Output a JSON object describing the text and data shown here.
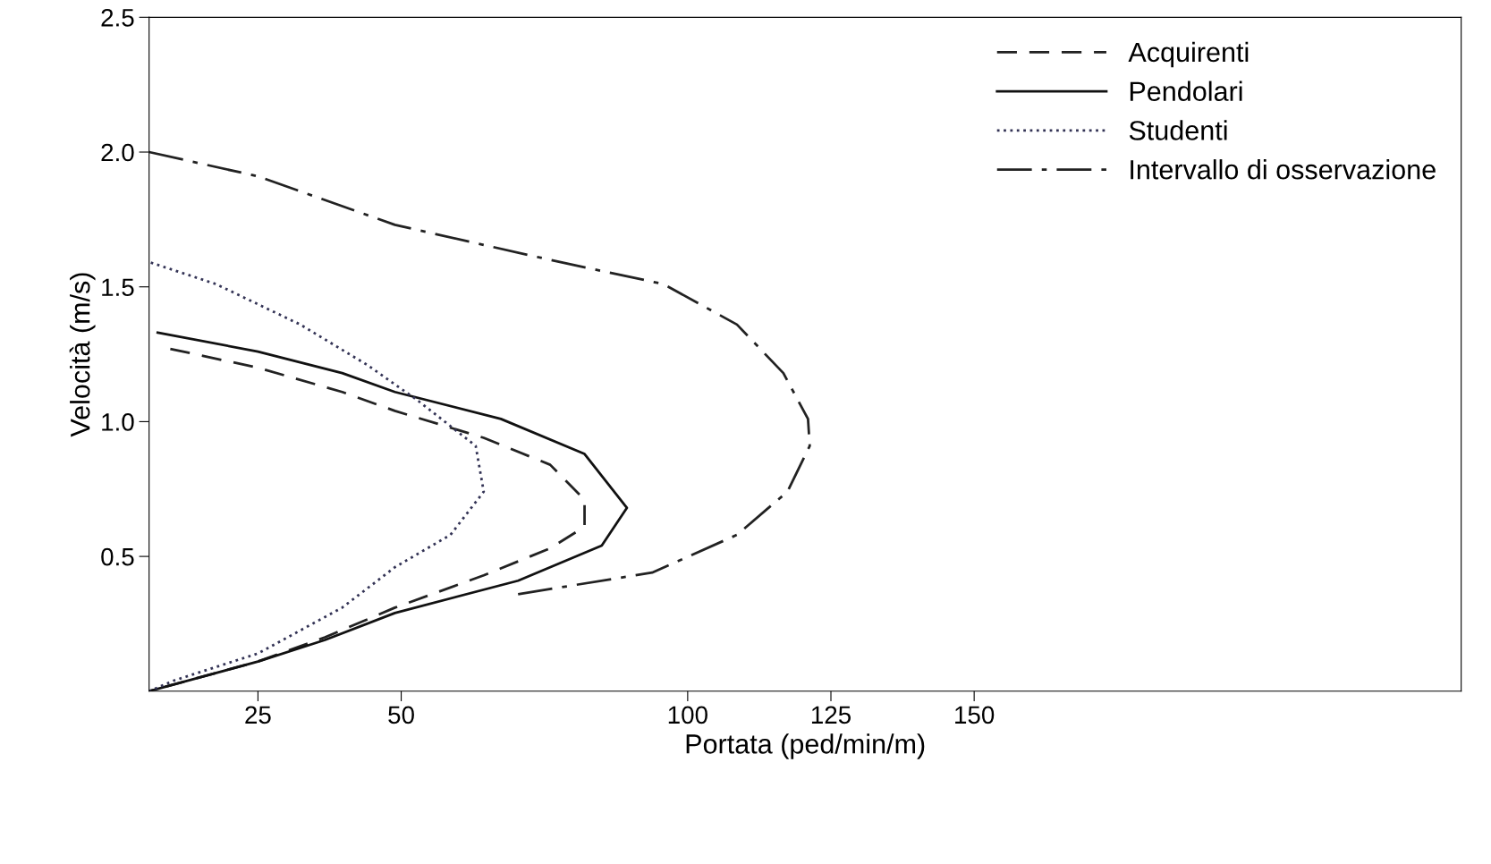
{
  "chart_data": {
    "type": "line",
    "xlabel": "Portata (ped/min/m)",
    "ylabel": "Velocità (m/s)",
    "xlim": [
      6,
      235
    ],
    "ylim": [
      0,
      2.5
    ],
    "xticks": [
      25,
      50,
      100,
      125,
      150
    ],
    "yticks": [
      0.5,
      {
        "value": 1.0,
        "label": "1.0"
      },
      1.5,
      {
        "value": 2.0,
        "label": "2.0"
      },
      2.5
    ],
    "grid": false,
    "legend": "top right",
    "series": [
      {
        "name": "Acquirenti",
        "color": "#222222",
        "line_style": "dashed",
        "x": [
          9.7,
          25,
          39.7,
          48.9,
          64.4,
          76,
          82,
          82,
          76,
          64.4,
          48.9,
          36.7,
          25,
          6
        ],
        "values": [
          1.27,
          1.2,
          1.11,
          1.04,
          0.94,
          0.84,
          0.71,
          0.61,
          0.53,
          0.43,
          0.31,
          0.2,
          0.11,
          0.0
        ]
      },
      {
        "name": "Pendolari",
        "color": "#111111",
        "line_style": "solid",
        "x": [
          7.5,
          25,
          39.7,
          48.9,
          67.4,
          82,
          89.4,
          85,
          70.4,
          48.9,
          36.7,
          25,
          6
        ],
        "values": [
          1.33,
          1.26,
          1.18,
          1.11,
          1.01,
          0.88,
          0.68,
          0.54,
          0.41,
          0.29,
          0.19,
          0.11,
          0.0
        ]
      },
      {
        "name": "Studenti",
        "color": "#333355",
        "line_style": "dotted",
        "x": [
          6.3,
          17.7,
          32.4,
          44.1,
          52.8,
          63,
          64.4,
          58.6,
          48.9,
          39.7,
          25,
          10.4,
          6
        ],
        "values": [
          1.59,
          1.51,
          1.36,
          1.21,
          1.08,
          0.91,
          0.74,
          0.58,
          0.46,
          0.31,
          0.14,
          0.04,
          0.0
        ]
      },
      {
        "name": "Intervallo di osservazione",
        "color": "#222222",
        "line_style": "dashdot",
        "x": [
          6,
          25,
          48.9,
          76,
          95.8,
          108.6,
          116.7,
          121,
          121.3,
          117.4,
          108.6,
          93.8,
          70.4
        ],
        "values": [
          2.0,
          1.91,
          1.73,
          1.6,
          1.51,
          1.36,
          1.18,
          1.01,
          0.91,
          0.74,
          0.58,
          0.44,
          0.36
        ]
      }
    ]
  }
}
